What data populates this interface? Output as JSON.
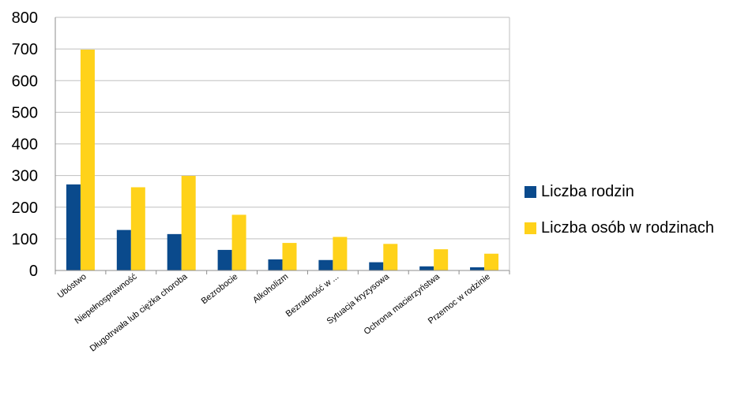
{
  "chart_data": {
    "type": "bar",
    "categories": [
      "Ubóstwo",
      "Niepełnosprawność",
      "Długotrwała lub ciężka choroba",
      "Bezrobocie",
      "Alkoholizm",
      "Bezradność w ...",
      "Sytuacja kryzysowa",
      "Ochrona macierzyństwa",
      "Przemoc w rodzinie"
    ],
    "series": [
      {
        "name": "Liczba rodzin",
        "color": "#0a4a8c",
        "values": [
          272,
          128,
          115,
          65,
          35,
          33,
          26,
          13,
          10
        ]
      },
      {
        "name": "Liczba osób w rodzinach",
        "color": "#ffd21a",
        "values": [
          698,
          263,
          299,
          176,
          87,
          106,
          84,
          67,
          53
        ]
      }
    ],
    "y_ticks": [
      "0",
      "100",
      "200",
      "300",
      "400",
      "500",
      "600",
      "700",
      "800"
    ],
    "ylim": [
      0,
      800
    ],
    "grid": true,
    "legend_position": "right",
    "title": "",
    "xlabel": "",
    "ylabel": ""
  }
}
